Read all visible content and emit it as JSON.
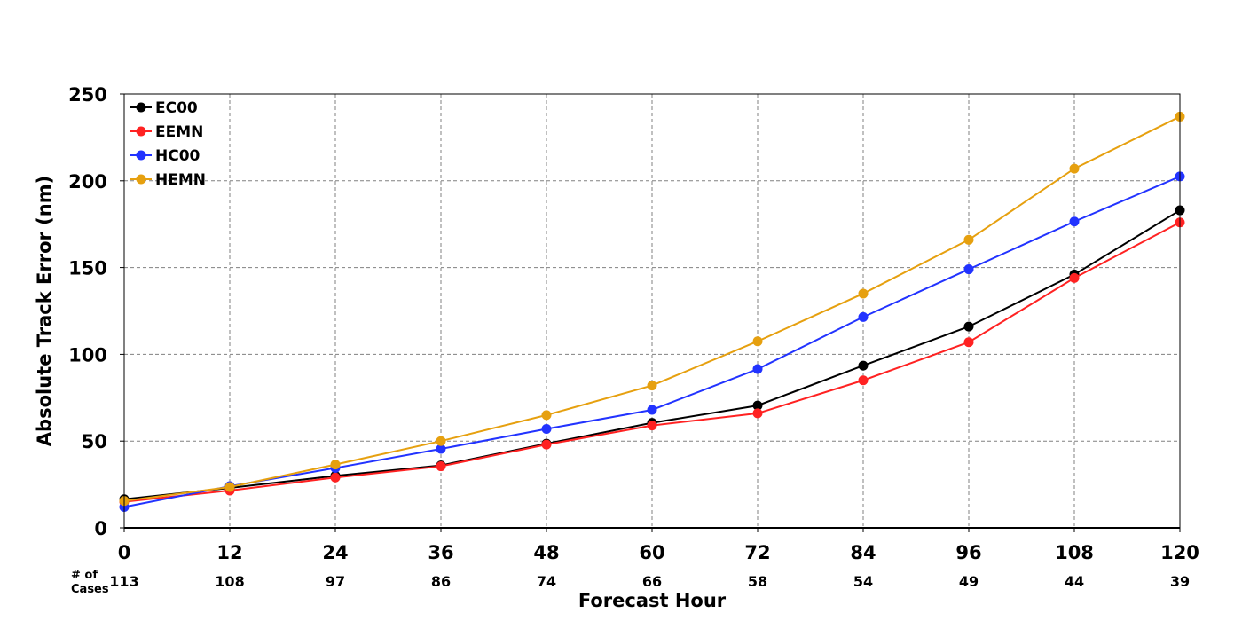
{
  "chart_data": {
    "type": "line",
    "xlabel": "Forecast Hour",
    "ylabel": "Absolute Track Error (nm)",
    "x": [
      0,
      12,
      24,
      36,
      48,
      60,
      72,
      84,
      96,
      108,
      120
    ],
    "xlim": [
      0,
      120
    ],
    "ylim": [
      0,
      250
    ],
    "yticks": [
      0,
      50,
      100,
      150,
      200,
      250
    ],
    "grid": true,
    "legend_position": "top-left",
    "cases_label": "# of Cases",
    "cases": [
      113,
      108,
      97,
      86,
      74,
      66,
      58,
      54,
      49,
      44,
      39
    ],
    "series": [
      {
        "name": "EC00",
        "color": "#000000",
        "values": [
          16.5,
          23,
          30,
          36,
          48.5,
          60.5,
          70.5,
          93.5,
          116,
          146,
          183
        ]
      },
      {
        "name": "EEMN",
        "color": "#ff2222",
        "values": [
          15,
          21.5,
          29,
          35.5,
          48,
          59,
          66,
          85,
          107,
          144,
          176
        ]
      },
      {
        "name": "HC00",
        "color": "#2233ff",
        "values": [
          12,
          24,
          34.5,
          45.5,
          57,
          68,
          91.5,
          121.5,
          149,
          176.5,
          202.5
        ]
      },
      {
        "name": "HEMN",
        "color": "#e6a00f",
        "values": [
          15.5,
          23.5,
          36.5,
          50,
          65,
          82,
          107.5,
          135,
          166,
          207,
          237
        ]
      }
    ]
  }
}
